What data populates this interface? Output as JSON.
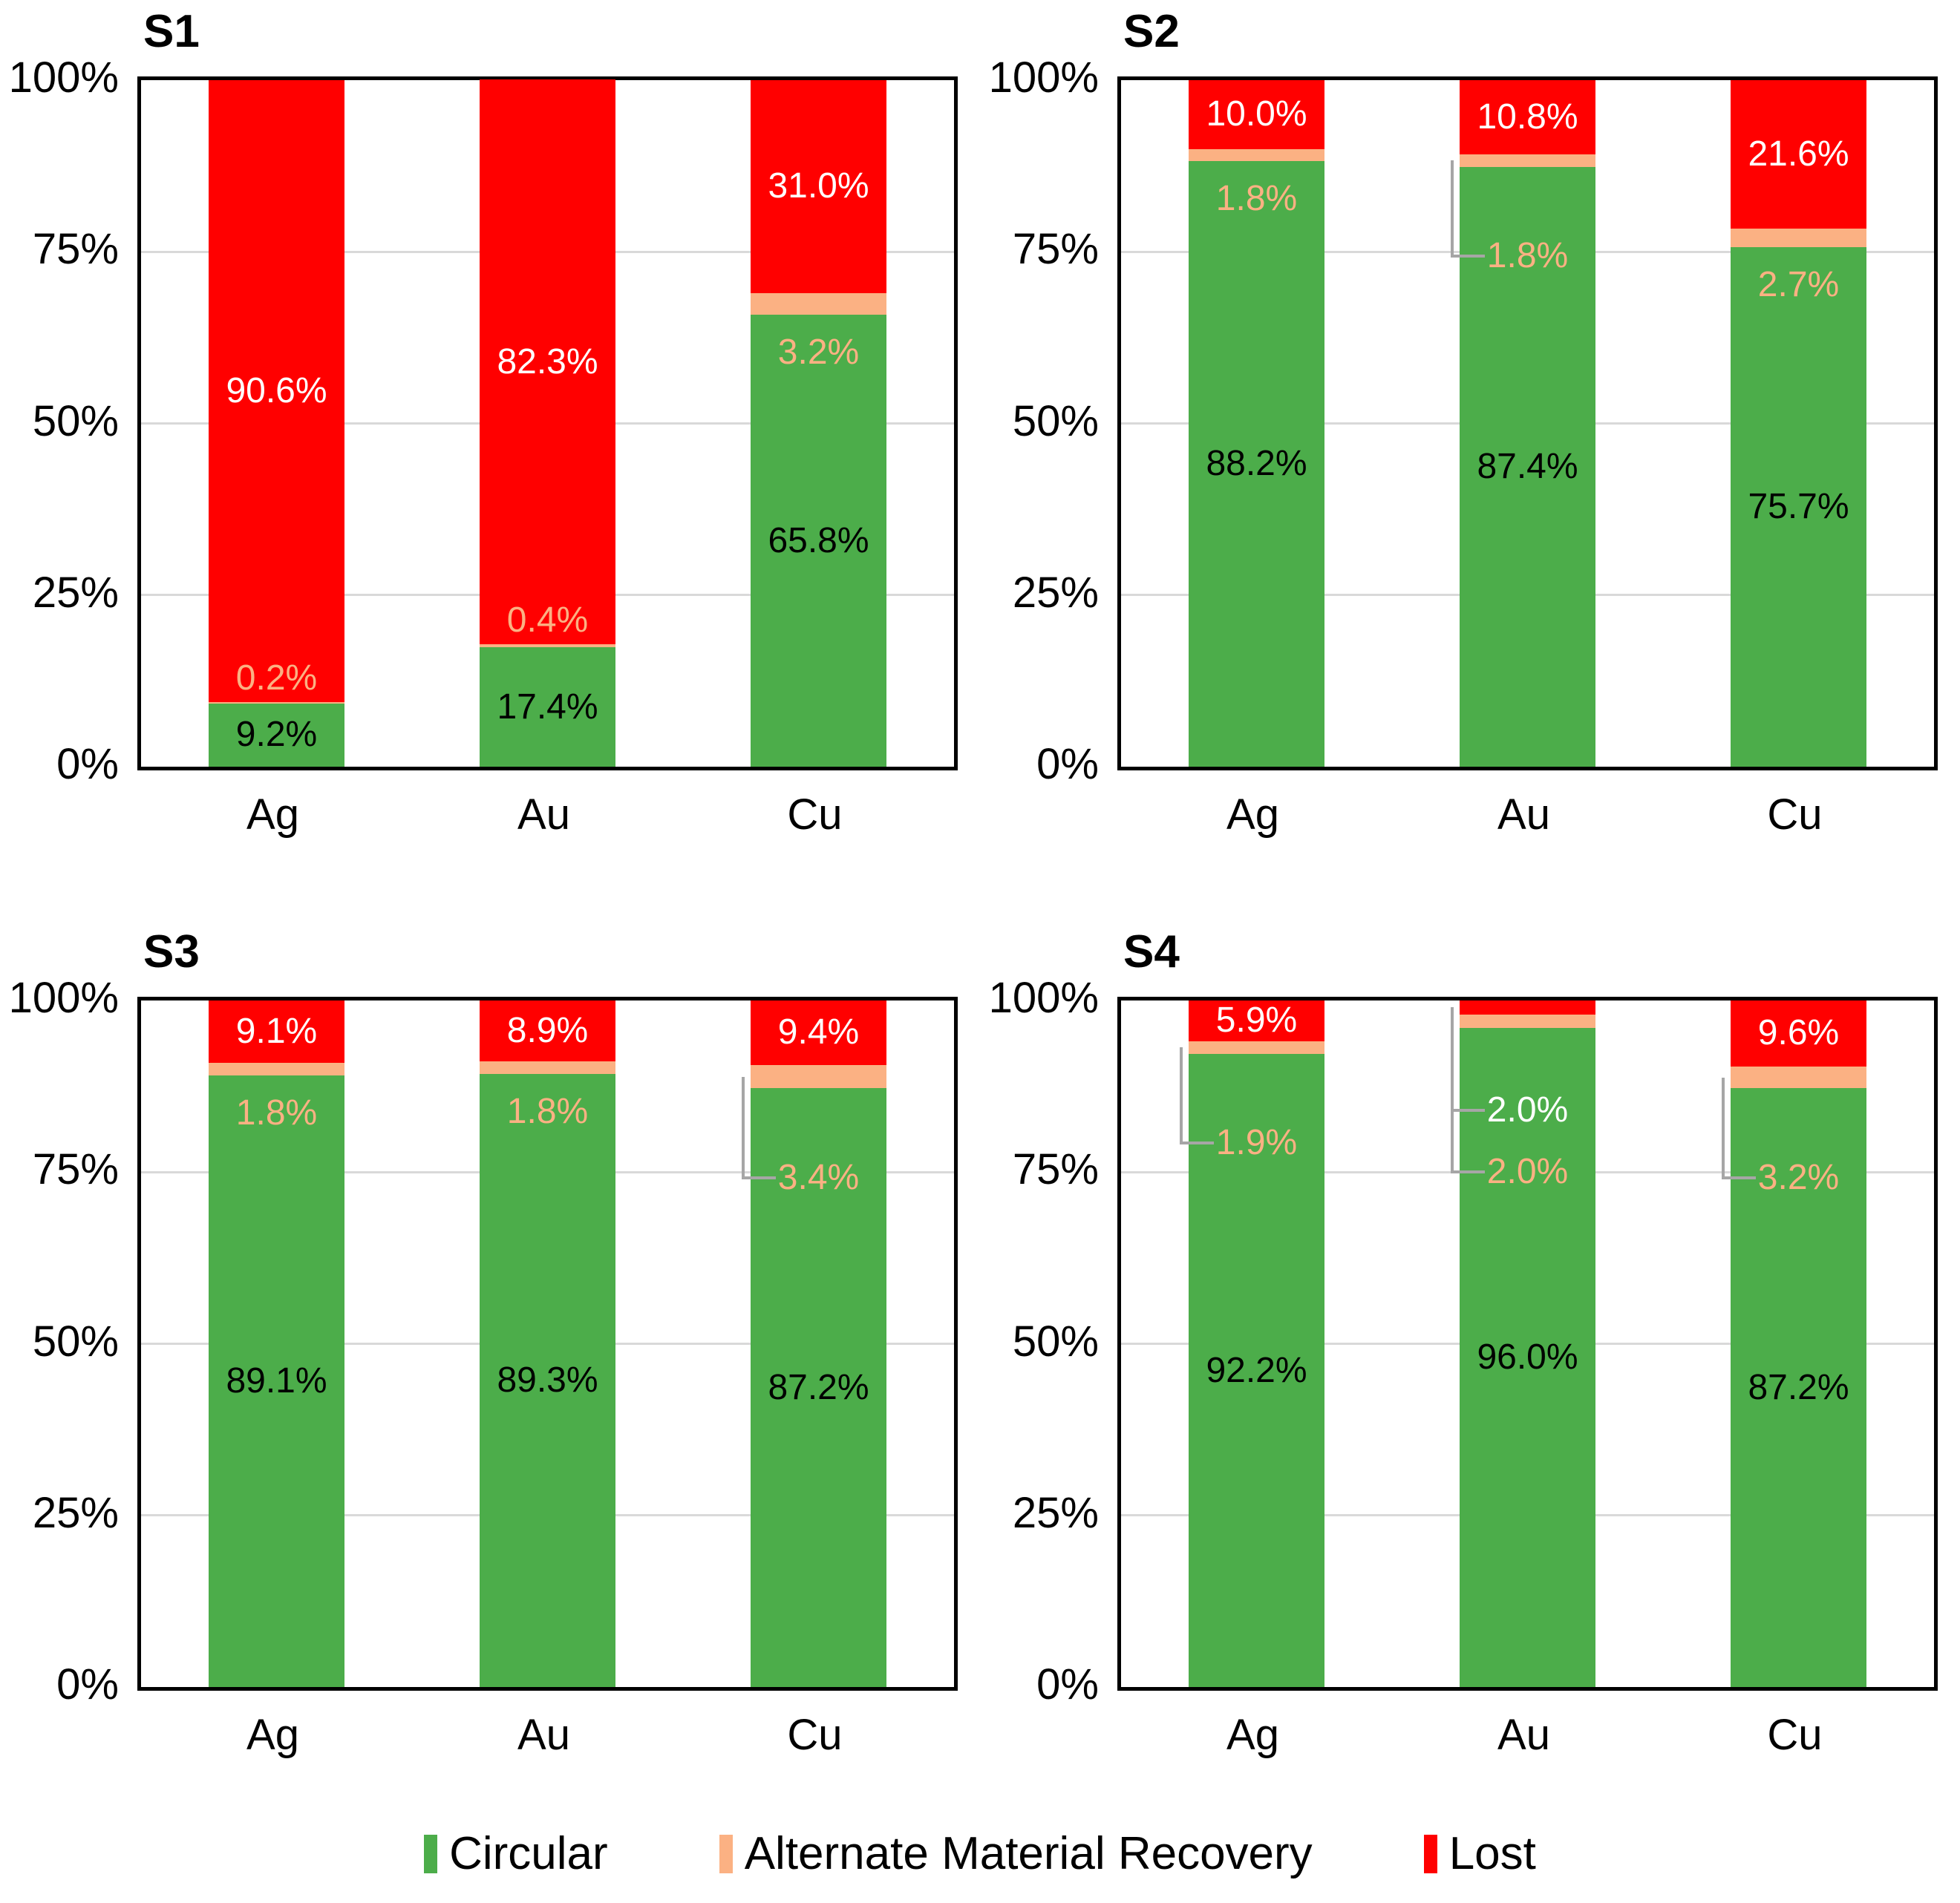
{
  "figure": {
    "colors": {
      "circular": "#4CAD4A",
      "amr": "#FBB183",
      "lost": "#FF0000",
      "label_on_lost": "#FFFFFF",
      "label_on_circular": "#000000",
      "amr_label": "#FBB183",
      "gridline": "#D9D9D9",
      "plot_border": "#000000",
      "leader": "#A6A6A6",
      "text": "#000000",
      "background": "#FFFFFF"
    },
    "y_axis": {
      "ticks": [
        "100%",
        "75%",
        "50%",
        "25%",
        "0%"
      ],
      "values": [
        100,
        75,
        50,
        25,
        0
      ]
    },
    "legend": [
      {
        "label": "Circular",
        "color_key": "circular"
      },
      {
        "label": "Alternate Material Recovery",
        "color_key": "amr"
      },
      {
        "label": "Lost",
        "color_key": "lost"
      }
    ]
  },
  "chart_data": [
    {
      "type": "bar",
      "stacked": true,
      "title": "S1",
      "categories": [
        "Ag",
        "Au",
        "Cu"
      ],
      "ylim": [
        0,
        100
      ],
      "grid": true,
      "legend_position": "bottom",
      "series": [
        {
          "name": "Circular",
          "values": [
            9.2,
            17.4,
            65.8
          ]
        },
        {
          "name": "Alternate Material Recovery",
          "values": [
            0.2,
            0.4,
            3.2
          ]
        },
        {
          "name": "Lost",
          "values": [
            90.6,
            82.3,
            31.0
          ]
        }
      ],
      "label_hints": {
        "amr": [
          {
            "side": "above"
          },
          {
            "side": "above"
          },
          {
            "side": "below"
          }
        ],
        "lost": [
          {
            "side": "inside"
          },
          {
            "side": "inside"
          },
          {
            "side": "inside"
          }
        ]
      }
    },
    {
      "type": "bar",
      "stacked": true,
      "title": "S2",
      "categories": [
        "Ag",
        "Au",
        "Cu"
      ],
      "ylim": [
        0,
        100
      ],
      "grid": true,
      "legend_position": "bottom",
      "series": [
        {
          "name": "Circular",
          "values": [
            88.2,
            87.4,
            75.7
          ]
        },
        {
          "name": "Alternate Material Recovery",
          "values": [
            1.8,
            1.8,
            2.7
          ]
        },
        {
          "name": "Lost",
          "values": [
            10.0,
            10.8,
            21.6
          ]
        }
      ],
      "label_hints": {
        "amr": [
          {
            "side": "below"
          },
          {
            "side": "below",
            "leader": true
          },
          {
            "side": "below"
          }
        ],
        "lost": [
          {
            "side": "inside"
          },
          {
            "side": "inside"
          },
          {
            "side": "inside"
          }
        ]
      }
    },
    {
      "type": "bar",
      "stacked": true,
      "title": "S3",
      "categories": [
        "Ag",
        "Au",
        "Cu"
      ],
      "ylim": [
        0,
        100
      ],
      "grid": true,
      "legend_position": "bottom",
      "series": [
        {
          "name": "Circular",
          "values": [
            89.1,
            89.3,
            87.2
          ]
        },
        {
          "name": "Alternate Material Recovery",
          "values": [
            1.8,
            1.8,
            3.4
          ]
        },
        {
          "name": "Lost",
          "values": [
            9.1,
            8.9,
            9.4
          ]
        }
      ],
      "label_hints": {
        "amr": [
          {
            "side": "below"
          },
          {
            "side": "below"
          },
          {
            "side": "below",
            "leader": true
          }
        ],
        "lost": [
          {
            "side": "inside"
          },
          {
            "side": "inside"
          },
          {
            "side": "inside"
          }
        ]
      }
    },
    {
      "type": "bar",
      "stacked": true,
      "title": "S4",
      "categories": [
        "Ag",
        "Au",
        "Cu"
      ],
      "ylim": [
        0,
        100
      ],
      "grid": true,
      "legend_position": "bottom",
      "series": [
        {
          "name": "Circular",
          "values": [
            92.2,
            96.0,
            87.2
          ]
        },
        {
          "name": "Alternate Material Recovery",
          "values": [
            1.9,
            2.0,
            3.2
          ]
        },
        {
          "name": "Lost",
          "values": [
            5.9,
            2.0,
            9.6
          ]
        }
      ],
      "label_hints": {
        "amr": [
          {
            "side": "below",
            "leader": true
          },
          {
            "side": "below",
            "leader": true,
            "offset": 21
          },
          {
            "side": "below",
            "leader": true
          }
        ],
        "lost": [
          {
            "side": "inside"
          },
          {
            "side": "below",
            "leader": true,
            "offset": 14
          },
          {
            "side": "inside"
          }
        ]
      }
    }
  ]
}
